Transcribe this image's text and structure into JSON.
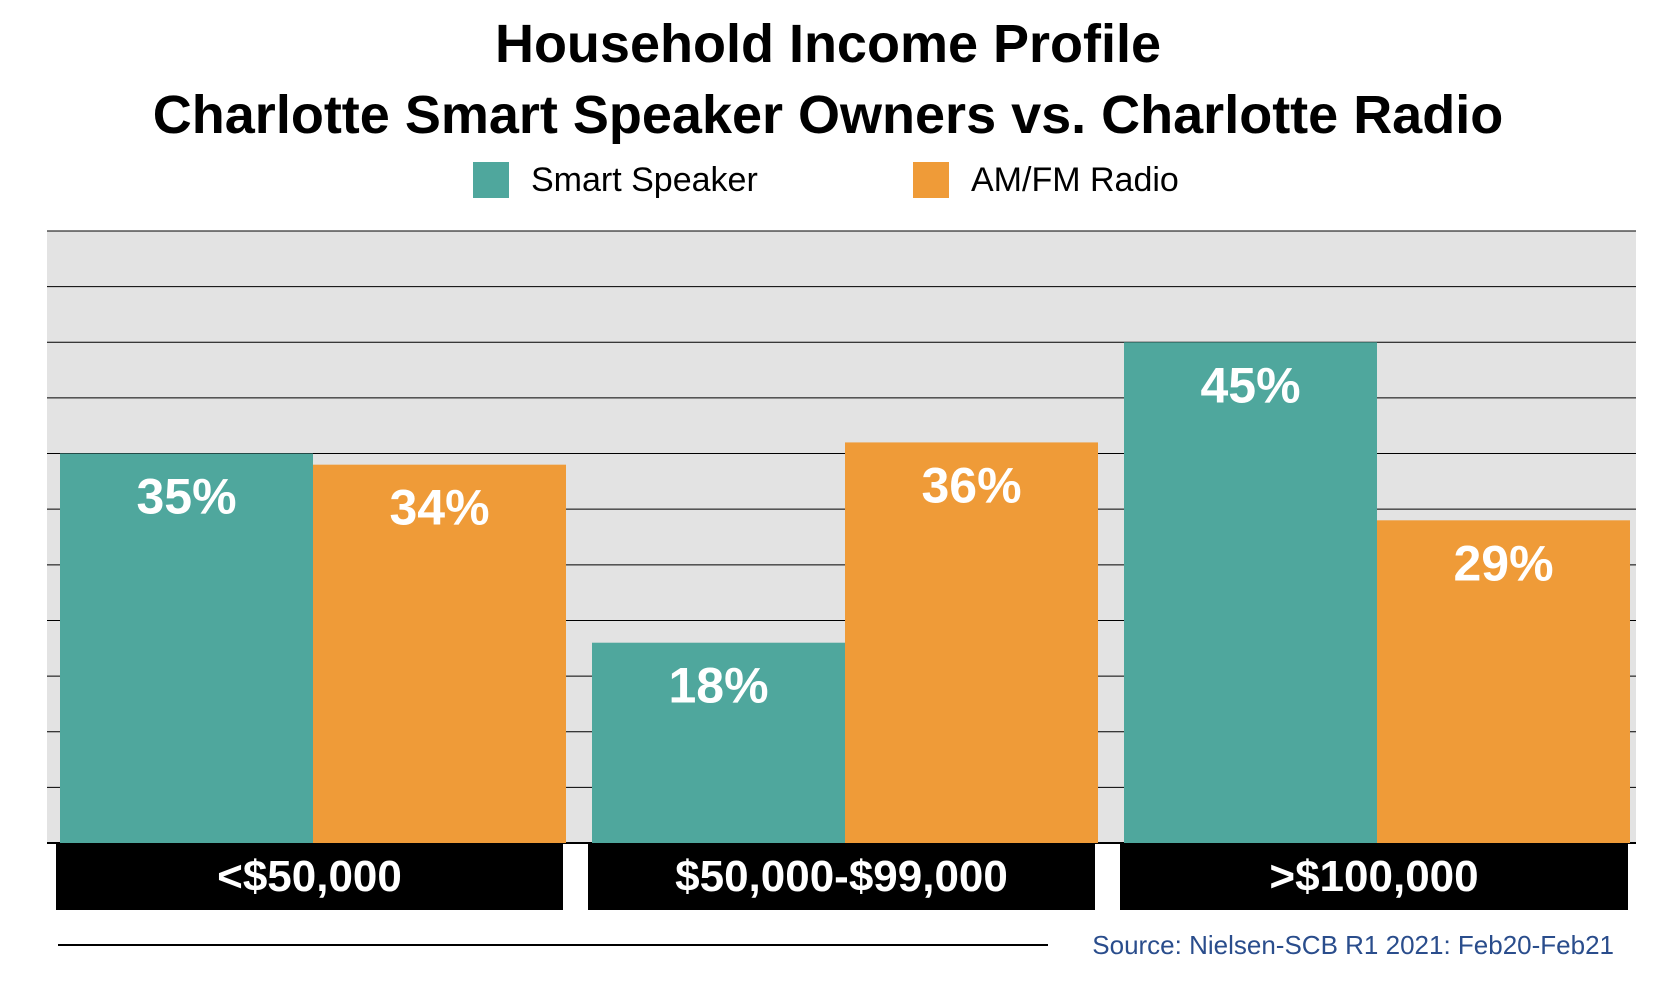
{
  "title": {
    "line1": "Household Income Profile",
    "line2": "Charlotte Smart Speaker Owners vs. Charlotte Radio"
  },
  "legend": {
    "smart_speaker": "Smart Speaker",
    "amfm_radio": "AM/FM Radio"
  },
  "colors": {
    "smart_speaker": "#4fa79d",
    "amfm_radio": "#ef9b38",
    "plot_background": "#e3e3e3",
    "source_text": "#2a4d8c"
  },
  "chart_data": {
    "type": "bar",
    "categories": [
      "<$50,000",
      "$50,000-$99,000",
      ">$100,000"
    ],
    "series": [
      {
        "name": "Smart Speaker",
        "values": [
          35,
          18,
          45
        ],
        "labels": [
          "35%",
          "18%",
          "45%"
        ]
      },
      {
        "name": "AM/FM Radio",
        "values": [
          34,
          36,
          29
        ],
        "labels": [
          "34%",
          "36%",
          "29%"
        ]
      }
    ],
    "ylim": [
      0,
      55
    ],
    "grid": true,
    "legend_position": "top"
  },
  "source": "Source: Nielsen-SCB R1 2021: Feb20-Feb21"
}
